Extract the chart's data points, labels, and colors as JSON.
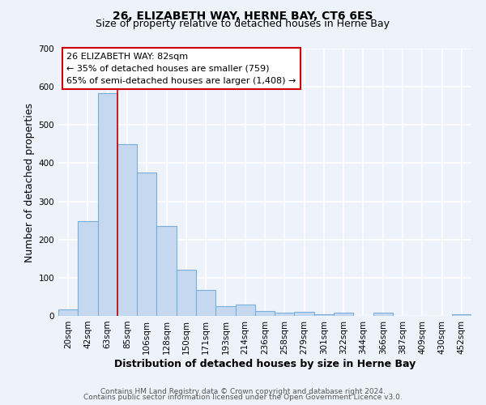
{
  "title": "26, ELIZABETH WAY, HERNE BAY, CT6 6ES",
  "subtitle": "Size of property relative to detached houses in Herne Bay",
  "xlabel": "Distribution of detached houses by size in Herne Bay",
  "ylabel": "Number of detached properties",
  "bin_labels": [
    "20sqm",
    "42sqm",
    "63sqm",
    "85sqm",
    "106sqm",
    "128sqm",
    "150sqm",
    "171sqm",
    "193sqm",
    "214sqm",
    "236sqm",
    "258sqm",
    "279sqm",
    "301sqm",
    "322sqm",
    "344sqm",
    "366sqm",
    "387sqm",
    "409sqm",
    "430sqm",
    "452sqm"
  ],
  "bar_values": [
    18,
    248,
    583,
    450,
    375,
    235,
    120,
    68,
    25,
    30,
    12,
    8,
    10,
    5,
    8,
    0,
    8,
    0,
    0,
    0,
    5
  ],
  "bar_color": "#c5d8f0",
  "bar_edge_color": "#7aafda",
  "vline_color": "#cc0000",
  "vline_x_index": 2.5,
  "ylim": [
    0,
    700
  ],
  "yticks": [
    0,
    100,
    200,
    300,
    400,
    500,
    600,
    700
  ],
  "annotation_title": "26 ELIZABETH WAY: 82sqm",
  "annotation_line1": "← 35% of detached houses are smaller (759)",
  "annotation_line2": "65% of semi-detached houses are larger (1,408) →",
  "annotation_box_color": "white",
  "annotation_box_edgecolor": "#cc0000",
  "footer1": "Contains HM Land Registry data © Crown copyright and database right 2024.",
  "footer2": "Contains public sector information licensed under the Open Government Licence v3.0.",
  "background_color": "#eef2fb",
  "grid_color": "white",
  "title_fontsize": 10,
  "subtitle_fontsize": 9,
  "axis_label_fontsize": 9,
  "tick_fontsize": 7.5,
  "footer_fontsize": 6.5,
  "annotation_fontsize": 8
}
